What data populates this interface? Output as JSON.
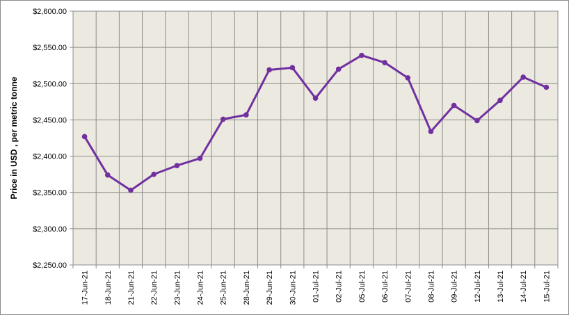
{
  "chart_data": {
    "type": "line",
    "title": "",
    "xlabel": "",
    "ylabel": "Price in USD , per metric tonne",
    "ylim": [
      2250,
      2600
    ],
    "yticks": [
      2250,
      2300,
      2350,
      2400,
      2450,
      2500,
      2550,
      2600
    ],
    "ytick_labels": [
      "$2,250.00",
      "$2,300.00",
      "$2,350.00",
      "$2,400.00",
      "$2,450.00",
      "$2,500.00",
      "$2,550.00",
      "$2,600.00"
    ],
    "categories": [
      "17-Jun-21",
      "18-Jun-21",
      "21-Jun-21",
      "22-Jun-21",
      "23-Jun-21",
      "24-Jun-21",
      "25-Jun-21",
      "28-Jun-21",
      "29-Jun-21",
      "30-Jun-21",
      "01-Jul-21",
      "02-Jul-21",
      "05-Jul-21",
      "06-Jul-21",
      "07-Jul-21",
      "08-Jul-21",
      "09-Jul-21",
      "12-Jul-21",
      "13-Jul-21",
      "14-Jul-21",
      "15-Jul-21"
    ],
    "series": [
      {
        "values": [
          2427,
          2374,
          2353,
          2375,
          2387,
          2397,
          2451,
          2457,
          2519,
          2522,
          2480,
          2520,
          2539,
          2529,
          2508,
          2434,
          2470,
          2449,
          2477,
          2509,
          2495
        ]
      }
    ],
    "grid": true,
    "legend": "none",
    "colors": {
      "line": "#7030A0",
      "plot_background": "#ECE9E0",
      "grid": "#8C8C8C"
    }
  }
}
